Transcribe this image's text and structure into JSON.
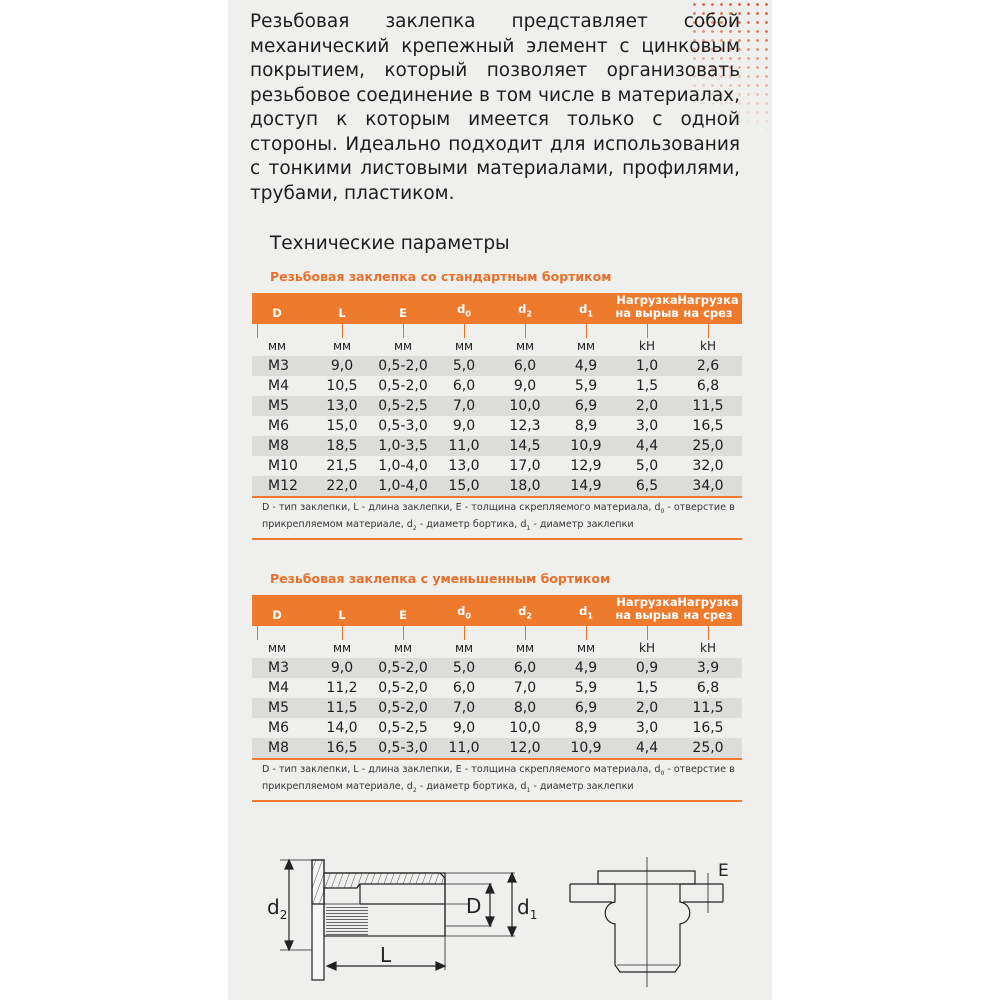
{
  "intro": "Резьбовая заклепка представляет собой механический крепежный элемент с цинковым покрытием, который позволяет организовать резьбовое соединение в том числе в материалах, доступ к которым имеется только с одной стороны. Идеально подходит для использования с тонкими листовыми материалами, профилями, трубами, пластиком.",
  "tech_title": "Технические параметры",
  "accent_color": "#ee7a2d",
  "columns": [
    {
      "label": "D",
      "sub": "",
      "unit": "мм"
    },
    {
      "label": "L",
      "sub": "",
      "unit": "мм"
    },
    {
      "label": "E",
      "sub": "",
      "unit": "мм"
    },
    {
      "label": "d",
      "sub": "0",
      "unit": "мм"
    },
    {
      "label": "d",
      "sub": "2",
      "unit": "мм"
    },
    {
      "label": "d",
      "sub": "1",
      "unit": "мм"
    },
    {
      "label": "Нагрузка на вырыв",
      "sub": "",
      "unit": "kH"
    },
    {
      "label": "Нагрузка на срез",
      "sub": "",
      "unit": "kH"
    }
  ],
  "tables": [
    {
      "title": "Резьбовая заклепка со стандартным бортиком",
      "rows": [
        [
          "M3",
          "9,0",
          "0,5-2,0",
          "5,0",
          "6,0",
          "4,9",
          "1,0",
          "2,6"
        ],
        [
          "M4",
          "10,5",
          "0,5-2,0",
          "6,0",
          "9,0",
          "5,9",
          "1,5",
          "6,8"
        ],
        [
          "M5",
          "13,0",
          "0,5-2,5",
          "7,0",
          "10,0",
          "6,9",
          "2,0",
          "11,5"
        ],
        [
          "M6",
          "15,0",
          "0,5-3,0",
          "9,0",
          "12,3",
          "8,9",
          "3,0",
          "16,5"
        ],
        [
          "M8",
          "18,5",
          "1,0-3,5",
          "11,0",
          "14,5",
          "10,9",
          "4,4",
          "25,0"
        ],
        [
          "M10",
          "21,5",
          "1,0-4,0",
          "13,0",
          "17,0",
          "12,9",
          "5,0",
          "32,0"
        ],
        [
          "M12",
          "22,0",
          "1,0-4,0",
          "15,0",
          "18,0",
          "14,9",
          "6,5",
          "34,0"
        ]
      ]
    },
    {
      "title": "Резьбовая заклепка с уменьшенным бортиком",
      "rows": [
        [
          "M3",
          "9,0",
          "0,5-2,0",
          "5,0",
          "6,0",
          "4,9",
          "0,9",
          "3,9"
        ],
        [
          "M4",
          "11,2",
          "0,5-2,0",
          "6,0",
          "7,0",
          "5,9",
          "1,5",
          "6,8"
        ],
        [
          "M5",
          "11,5",
          "0,5-2,0",
          "7,0",
          "8,0",
          "6,9",
          "2,0",
          "11,5"
        ],
        [
          "M6",
          "14,0",
          "0,5-2,5",
          "9,0",
          "10,0",
          "8,9",
          "3,0",
          "16,5"
        ],
        [
          "M8",
          "16,5",
          "0,5-3,0",
          "11,0",
          "12,0",
          "10,9",
          "4,4",
          "25,0"
        ]
      ]
    }
  ],
  "footnote": {
    "p1": "D - тип заклепки, L - длина заклепки, E - толщина скрепляемого материала, d",
    "s1": "0",
    "p2": " - отверстие в прикрепляемом материале, d",
    "s2": "2",
    "p3": " - диаметр бортика, d",
    "s3": "1",
    "p4": " - диаметр заклепки"
  },
  "diagram_labels": {
    "d2": "d",
    "d2_sub": "2",
    "D": "D",
    "d1": "d",
    "d1_sub": "1",
    "L": "L",
    "E": "E"
  }
}
